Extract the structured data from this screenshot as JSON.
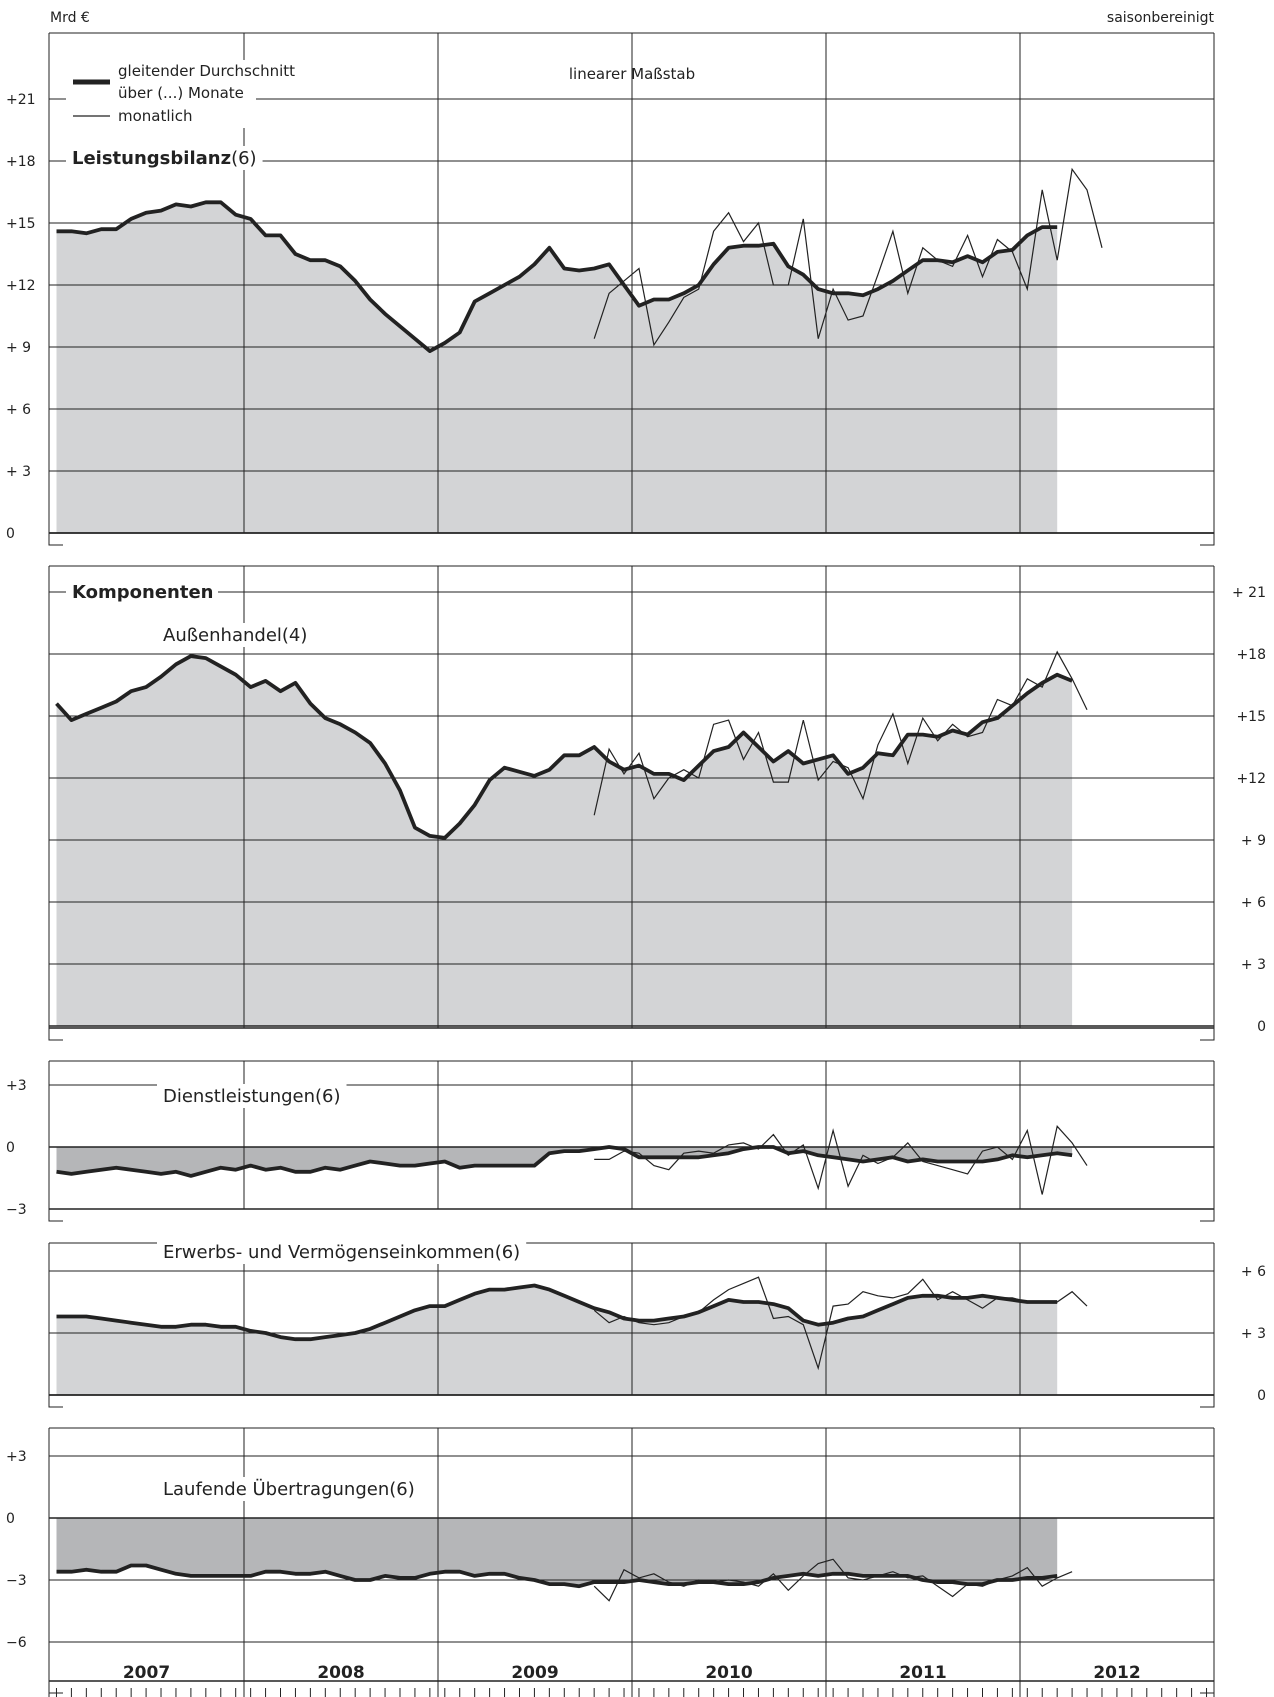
{
  "header": {
    "unit": "Mrd €",
    "note": "saisonbereinigt",
    "scale": "linearer Maßstab"
  },
  "legend": {
    "avg_line1": "gleitender Durchschnitt",
    "avg_line2": "über (...) Monate",
    "monthly": "monatlich"
  },
  "section_title": "Komponenten",
  "years": [
    "2007",
    "2008",
    "2009",
    "2010",
    "2011",
    "2012"
  ],
  "colors": {
    "fill": "#d3d4d6",
    "fill_dark": "#b5b6b8",
    "line": "#222222",
    "grid": "#222222"
  },
  "chart_data": [
    {
      "id": "leistungsbilanz",
      "type": "area",
      "title": "Leistungsbilanz",
      "window": "(6)",
      "ylim": [
        0,
        24
      ],
      "yticks": [
        0,
        3,
        6,
        9,
        12,
        15,
        18,
        21
      ],
      "tick_labels": [
        "0",
        "+ 3",
        "+ 6",
        "+ 9",
        "+12",
        "+15",
        "+18",
        "+21"
      ],
      "tick_side": "left",
      "moving_average": {
        "start_month": 1,
        "values": [
          14.6,
          14.6,
          14.5,
          14.7,
          14.7,
          15.2,
          15.5,
          15.6,
          15.9,
          15.8,
          16.0,
          16.0,
          15.4,
          15.2,
          14.4,
          14.4,
          13.5,
          13.2,
          13.2,
          12.9,
          12.2,
          11.3,
          10.6,
          10.0,
          9.4,
          8.8,
          9.2,
          9.7,
          11.2,
          11.6,
          12.0,
          12.4,
          13.0,
          13.8,
          12.8,
          12.7,
          12.8,
          13.0,
          12.0,
          11.0,
          11.3,
          11.3,
          11.6,
          12.0,
          13.0,
          13.8,
          13.9,
          13.9,
          14.0,
          12.9,
          12.5,
          11.8,
          11.6,
          11.6,
          11.5,
          11.8,
          12.2,
          12.7,
          13.2,
          13.2,
          13.1,
          13.4,
          13.1,
          13.6,
          13.7,
          14.4,
          14.8,
          14.8
        ]
      },
      "monthly": {
        "start_month": 37,
        "values": [
          9.4,
          11.6,
          12.2,
          12.8,
          9.1,
          10.2,
          11.4,
          11.8,
          14.6,
          15.5,
          14.1,
          15.0,
          12.0,
          12.0,
          15.2,
          9.4,
          11.8,
          10.3,
          10.5,
          12.5,
          14.6,
          11.6,
          13.8,
          13.2,
          12.9,
          14.4,
          12.4,
          14.2,
          13.6,
          11.8,
          16.6,
          13.2,
          17.6,
          16.6,
          13.8
        ]
      }
    },
    {
      "id": "aussenhandel",
      "type": "area",
      "title": "Außenhandel",
      "window": "(4)",
      "ylim": [
        0,
        24
      ],
      "yticks": [
        0,
        3,
        6,
        9,
        12,
        15,
        18,
        21
      ],
      "tick_labels": [
        "0",
        "+ 3",
        "+ 6",
        "+ 9",
        "+12",
        "+15",
        "+18",
        "+ 21"
      ],
      "tick_side": "right",
      "moving_average": {
        "start_month": 1,
        "values": [
          15.6,
          14.8,
          15.1,
          15.4,
          15.7,
          16.2,
          16.4,
          16.9,
          17.5,
          17.9,
          17.8,
          17.4,
          17.0,
          16.4,
          16.7,
          16.2,
          16.6,
          15.6,
          14.9,
          14.6,
          14.2,
          13.7,
          12.7,
          11.4,
          9.6,
          9.2,
          9.1,
          9.8,
          10.7,
          11.9,
          12.5,
          12.3,
          12.1,
          12.4,
          13.1,
          13.1,
          13.5,
          12.8,
          12.4,
          12.6,
          12.2,
          12.2,
          11.9,
          12.6,
          13.3,
          13.5,
          14.2,
          13.5,
          12.8,
          13.3,
          12.7,
          12.9,
          13.1,
          12.2,
          12.5,
          13.2,
          13.1,
          14.1,
          14.1,
          14.0,
          14.3,
          14.1,
          14.7,
          14.9,
          15.5,
          16.1,
          16.6,
          17.0,
          16.7
        ]
      },
      "monthly": {
        "start_month": 37,
        "values": [
          10.2,
          13.4,
          12.2,
          13.2,
          11.0,
          12.0,
          12.4,
          12.0,
          14.6,
          14.8,
          12.9,
          14.2,
          11.8,
          11.8,
          14.8,
          11.9,
          12.8,
          12.5,
          11.0,
          13.6,
          15.1,
          12.7,
          14.9,
          13.8,
          14.6,
          14.0,
          14.2,
          15.8,
          15.5,
          16.8,
          16.4,
          18.1,
          16.8,
          15.3
        ]
      }
    },
    {
      "id": "dienstleistungen",
      "type": "area",
      "title": "Dienstleistungen",
      "window": "(6)",
      "ylim": [
        -4.5,
        4.5
      ],
      "yticks": [
        -3,
        0,
        3
      ],
      "tick_labels": [
        "−3",
        "0",
        "+3"
      ],
      "tick_side": "left",
      "moving_average": {
        "start_month": 1,
        "values": [
          -1.2,
          -1.3,
          -1.2,
          -1.1,
          -1.0,
          -1.1,
          -1.2,
          -1.3,
          -1.2,
          -1.4,
          -1.2,
          -1.0,
          -1.1,
          -0.9,
          -1.1,
          -1.0,
          -1.2,
          -1.2,
          -1.0,
          -1.1,
          -0.9,
          -0.7,
          -0.8,
          -0.9,
          -0.9,
          -0.8,
          -0.7,
          -1.0,
          -0.9,
          -0.9,
          -0.9,
          -0.9,
          -0.9,
          -0.3,
          -0.2,
          -0.2,
          -0.1,
          0.0,
          -0.1,
          -0.5,
          -0.5,
          -0.5,
          -0.5,
          -0.5,
          -0.4,
          -0.3,
          -0.1,
          0.0,
          0.0,
          -0.3,
          -0.2,
          -0.4,
          -0.5,
          -0.6,
          -0.7,
          -0.6,
          -0.5,
          -0.7,
          -0.6,
          -0.7,
          -0.7,
          -0.7,
          -0.7,
          -0.6,
          -0.4,
          -0.5,
          -0.4,
          -0.3,
          -0.4
        ]
      },
      "monthly": {
        "start_month": 37,
        "values": [
          -0.6,
          -0.6,
          -0.2,
          -0.3,
          -0.9,
          -1.1,
          -0.3,
          -0.2,
          -0.3,
          0.1,
          0.2,
          -0.1,
          0.6,
          -0.4,
          0.1,
          -2.0,
          0.8,
          -1.9,
          -0.4,
          -0.8,
          -0.5,
          0.2,
          -0.7,
          -0.9,
          -1.1,
          -1.3,
          -0.2,
          0.0,
          -0.6,
          0.8,
          -2.3,
          1.0,
          0.2,
          -0.9
        ]
      }
    },
    {
      "id": "erwerbseinkommen",
      "type": "area",
      "title": "Erwerbs- und Vermögenseinkommen",
      "window": "(6)",
      "ylim": [
        0,
        7.5
      ],
      "yticks": [
        0,
        3,
        6
      ],
      "tick_labels": [
        "0",
        "+ 3",
        "+ 6"
      ],
      "tick_side": "right",
      "moving_average": {
        "start_month": 1,
        "values": [
          3.8,
          3.8,
          3.8,
          3.7,
          3.6,
          3.5,
          3.4,
          3.3,
          3.3,
          3.4,
          3.4,
          3.3,
          3.3,
          3.1,
          3.0,
          2.8,
          2.7,
          2.7,
          2.8,
          2.9,
          3.0,
          3.2,
          3.5,
          3.8,
          4.1,
          4.3,
          4.3,
          4.6,
          4.9,
          5.1,
          5.1,
          5.2,
          5.3,
          5.1,
          4.8,
          4.5,
          4.2,
          4.0,
          3.7,
          3.6,
          3.6,
          3.7,
          3.8,
          4.0,
          4.3,
          4.6,
          4.5,
          4.5,
          4.4,
          4.2,
          3.6,
          3.4,
          3.5,
          3.7,
          3.8,
          4.1,
          4.4,
          4.7,
          4.8,
          4.8,
          4.7,
          4.7,
          4.8,
          4.7,
          4.6,
          4.5,
          4.5,
          4.5
        ]
      },
      "monthly": {
        "start_month": 37,
        "values": [
          4.1,
          3.5,
          3.8,
          3.5,
          3.4,
          3.5,
          3.8,
          4.0,
          4.6,
          5.1,
          5.4,
          5.7,
          3.7,
          3.8,
          3.4,
          1.3,
          4.3,
          4.4,
          5.0,
          4.8,
          4.7,
          4.9,
          5.6,
          4.6,
          5.0,
          4.6,
          4.2,
          4.7,
          4.7,
          4.5,
          4.5,
          4.5,
          5.0,
          4.3
        ]
      }
    },
    {
      "id": "uebertragungen",
      "type": "area",
      "title": "Laufende Übertragungen",
      "window": "(6)",
      "ylim": [
        -7.5,
        4.5
      ],
      "yticks": [
        -6,
        -3,
        0,
        3
      ],
      "tick_labels": [
        "−6",
        "−3",
        "0",
        "+3"
      ],
      "tick_side": "left",
      "moving_average": {
        "start_month": 1,
        "values": [
          -2.6,
          -2.6,
          -2.5,
          -2.6,
          -2.6,
          -2.3,
          -2.3,
          -2.5,
          -2.7,
          -2.8,
          -2.8,
          -2.8,
          -2.8,
          -2.8,
          -2.6,
          -2.6,
          -2.7,
          -2.7,
          -2.6,
          -2.8,
          -3.0,
          -3.0,
          -2.8,
          -2.9,
          -2.9,
          -2.7,
          -2.6,
          -2.6,
          -2.8,
          -2.7,
          -2.7,
          -2.9,
          -3.0,
          -3.2,
          -3.2,
          -3.3,
          -3.1,
          -3.1,
          -3.1,
          -3.0,
          -3.1,
          -3.2,
          -3.2,
          -3.1,
          -3.1,
          -3.2,
          -3.2,
          -3.1,
          -2.9,
          -2.8,
          -2.7,
          -2.8,
          -2.7,
          -2.7,
          -2.8,
          -2.8,
          -2.8,
          -2.8,
          -3.0,
          -3.1,
          -3.1,
          -3.2,
          -3.2,
          -3.0,
          -3.0,
          -2.9,
          -2.9,
          -2.8
        ]
      },
      "monthly": {
        "start_month": 37,
        "values": [
          -3.3,
          -4.0,
          -2.5,
          -2.9,
          -2.7,
          -3.1,
          -3.3,
          -3.0,
          -3.1,
          -3.0,
          -3.1,
          -3.3,
          -2.7,
          -3.5,
          -2.8,
          -2.2,
          -2.0,
          -2.9,
          -3.0,
          -2.8,
          -2.6,
          -2.9,
          -2.8,
          -3.3,
          -3.8,
          -3.2,
          -3.3,
          -3.0,
          -2.8,
          -2.4,
          -3.3,
          -2.9,
          -2.6
        ]
      }
    }
  ]
}
